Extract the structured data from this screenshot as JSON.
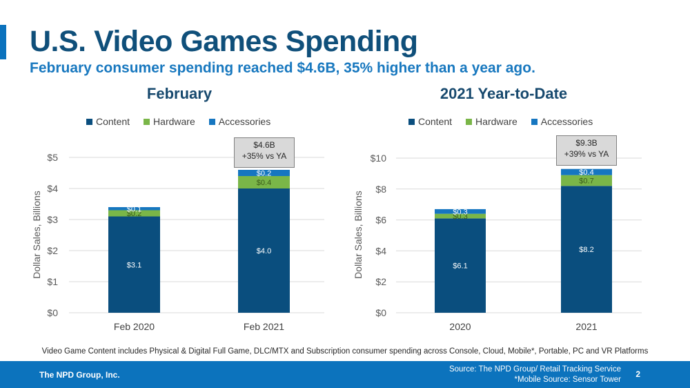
{
  "header": {
    "title": "U.S. Video Games Spending",
    "subtitle": "February consumer spending reached $4.6B, 35% higher than a year ago."
  },
  "colors": {
    "content": "#0a4e7e",
    "hardware": "#7ab648",
    "accessories": "#1676c0",
    "title": "#0f4f7a",
    "subtitle": "#1878bf",
    "footer": "#0c73bd"
  },
  "chart_data": [
    {
      "type": "bar",
      "stacked": true,
      "title": "February",
      "legend": [
        "Content",
        "Hardware",
        "Accessories"
      ],
      "legend_position": "top",
      "categories": [
        "Feb 2020",
        "Feb 2021"
      ],
      "series": [
        {
          "name": "Content",
          "values": [
            3.1,
            4.0
          ],
          "labels": [
            "$3.1",
            "$4.0"
          ]
        },
        {
          "name": "Hardware",
          "values": [
            0.2,
            0.4
          ],
          "labels": [
            "$0.2",
            "$0.4"
          ]
        },
        {
          "name": "Accessories",
          "values": [
            0.1,
            0.2
          ],
          "labels": [
            "$0.1",
            "$0.2"
          ]
        }
      ],
      "ylabel": "Dollar Sales, Billions",
      "xlabel": "",
      "ylim": [
        0,
        5
      ],
      "yticks": [
        0,
        1,
        2,
        3,
        4,
        5
      ],
      "ytick_labels": [
        "$0",
        "$1",
        "$2",
        "$3",
        "$4",
        "$5"
      ],
      "grid": true,
      "callout": {
        "category": "Feb 2021",
        "line1": "$4.6B",
        "line2": "+35% vs YA"
      }
    },
    {
      "type": "bar",
      "stacked": true,
      "title": "2021 Year-to-Date",
      "legend": [
        "Content",
        "Hardware",
        "Accessories"
      ],
      "legend_position": "top",
      "categories": [
        "2020",
        "2021"
      ],
      "series": [
        {
          "name": "Content",
          "values": [
            6.1,
            8.2
          ],
          "labels": [
            "$6.1",
            "$8.2"
          ]
        },
        {
          "name": "Hardware",
          "values": [
            0.3,
            0.7
          ],
          "labels": [
            "$0.3",
            "$0.7"
          ]
        },
        {
          "name": "Accessories",
          "values": [
            0.3,
            0.4
          ],
          "labels": [
            "$0.3",
            "$0.4"
          ]
        }
      ],
      "ylabel": "Dollar Sales, Billions",
      "xlabel": "",
      "ylim": [
        0,
        10
      ],
      "yticks": [
        0,
        2,
        4,
        6,
        8,
        10
      ],
      "ytick_labels": [
        "$0",
        "$2",
        "$4",
        "$6",
        "$8",
        "$10"
      ],
      "grid": true,
      "callout": {
        "category": "2021",
        "line1": "$9.3B",
        "line2": "+39% vs YA"
      }
    }
  ],
  "footnote": "Video Game Content includes Physical & Digital Full Game, DLC/MTX and Subscription consumer spending across Console, Cloud, Mobile*, Portable, PC and VR Platforms",
  "footer": {
    "company": "The NPD Group, Inc.",
    "source_line1": "Source: The NPD Group/ Retail Tracking Service",
    "source_line2": "*Mobile Source: Sensor Tower",
    "page_number": "2"
  }
}
